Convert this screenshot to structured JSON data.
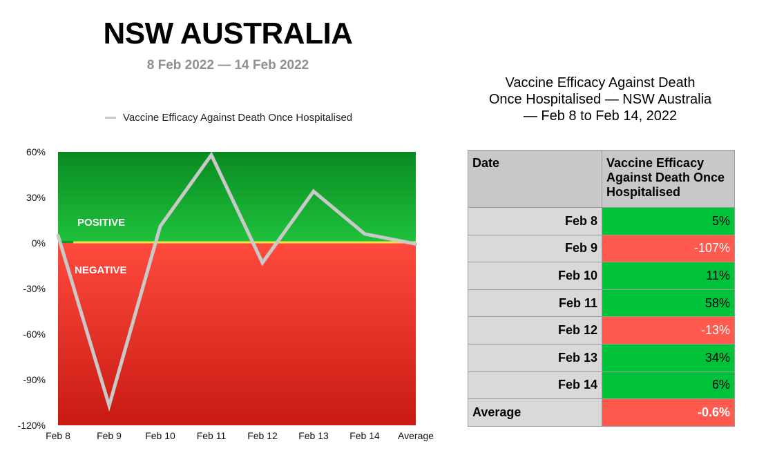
{
  "chart_data": {
    "type": "line",
    "title": "NSW AUSTRALIA",
    "subtitle": "8 Feb 2022 — 14 Feb 2022",
    "legend": "Vaccine Efficacy Against Death Once Hospitalised",
    "categories": [
      "Feb 8",
      "Feb 9",
      "Feb 10",
      "Feb 11",
      "Feb 12",
      "Feb 13",
      "Feb 14",
      "Average"
    ],
    "series": [
      {
        "name": "Vaccine Efficacy Against Death Once Hospitalised",
        "values": [
          5,
          -107,
          11,
          58,
          -13,
          34,
          6,
          -0.6
        ]
      }
    ],
    "ylim": [
      -120,
      60
    ],
    "yticks": [
      {
        "value": 60,
        "label": "60%"
      },
      {
        "value": 30,
        "label": "30%"
      },
      {
        "value": 0,
        "label": "0%"
      },
      {
        "value": -30,
        "label": "-30%"
      },
      {
        "value": -60,
        "label": "-60%"
      },
      {
        "value": -90,
        "label": "-90%"
      },
      {
        "value": -120,
        "label": "-120%"
      }
    ],
    "regions": {
      "positive": "POSITIVE",
      "negative": "NEGATIVE"
    },
    "colors": {
      "positive_top": "#0a8a22",
      "positive_bottom": "#1fc23c",
      "negative_top": "#ff4a3d",
      "negative_bottom": "#c81a12",
      "line": "#c9c9c9",
      "zero_line": "#f2e24a"
    }
  },
  "table": {
    "title": "Vaccine Efficacy Against Death Once Hospitalised — NSW Australia — Feb 8 to Feb 14, 2022",
    "headers": [
      "Date",
      "Vaccine Efficacy Against Death Once Hospitalised"
    ],
    "rows": [
      {
        "date": "Feb 8",
        "value": "5%",
        "status": "positive"
      },
      {
        "date": "Feb 9",
        "value": "-107%",
        "status": "negative"
      },
      {
        "date": "Feb 10",
        "value": "11%",
        "status": "positive"
      },
      {
        "date": "Feb 11",
        "value": "58%",
        "status": "positive"
      },
      {
        "date": "Feb 12",
        "value": "-13%",
        "status": "negative"
      },
      {
        "date": "Feb 13",
        "value": "34%",
        "status": "positive"
      },
      {
        "date": "Feb 14",
        "value": "6%",
        "status": "positive"
      }
    ],
    "average": {
      "label": "Average",
      "value": "-0.6%",
      "status": "negative"
    }
  }
}
